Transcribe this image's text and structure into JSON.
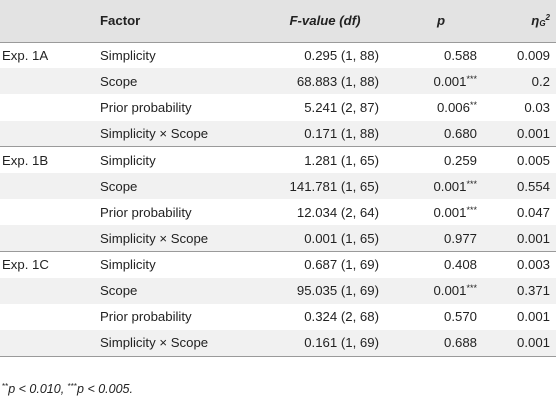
{
  "table": {
    "headers": {
      "experiment": "",
      "factor": "Factor",
      "f_value": "F-value (df)",
      "p": "p",
      "eta_main": "η",
      "eta_sub": "G",
      "eta_sup": "2"
    },
    "rows": [
      {
        "exp": "Exp. 1A",
        "factor": "Simplicity",
        "f": "0.295 (1, 88)",
        "p": "0.588",
        "stars": "",
        "eta": "0.009"
      },
      {
        "exp": "",
        "factor": "Scope",
        "f": "68.883 (1, 88)",
        "p": "0.001",
        "stars": "***",
        "eta": "0.2"
      },
      {
        "exp": "",
        "factor": "Prior probability",
        "f": "5.241 (2, 87)",
        "p": "0.006",
        "stars": "**",
        "eta": "0.03"
      },
      {
        "exp": "",
        "factor": "Simplicity × Scope",
        "f": "0.171 (1, 88)",
        "p": "0.680",
        "stars": "",
        "eta": "0.001"
      },
      {
        "exp": "Exp. 1B",
        "factor": "Simplicity",
        "f": "1.281 (1, 65)",
        "p": "0.259",
        "stars": "",
        "eta": "0.005"
      },
      {
        "exp": "",
        "factor": "Scope",
        "f": "141.781 (1, 65)",
        "p": "0.001",
        "stars": "***",
        "eta": "0.554"
      },
      {
        "exp": "",
        "factor": "Prior probability",
        "f": "12.034 (2, 64)",
        "p": "0.001",
        "stars": "***",
        "eta": "0.047"
      },
      {
        "exp": "",
        "factor": "Simplicity × Scope",
        "f": "0.001 (1, 65)",
        "p": "0.977",
        "stars": "",
        "eta": "0.001"
      },
      {
        "exp": "Exp. 1C",
        "factor": "Simplicity",
        "f": "0.687 (1, 69)",
        "p": "0.408",
        "stars": "",
        "eta": "0.003"
      },
      {
        "exp": "",
        "factor": "Scope",
        "f": "95.035 (1, 69)",
        "p": "0.001",
        "stars": "***",
        "eta": "0.371"
      },
      {
        "exp": "",
        "factor": "Prior probability",
        "f": "0.324 (2, 68)",
        "p": "0.570",
        "stars": "",
        "eta": "0.001"
      },
      {
        "exp": "",
        "factor": "Simplicity × Scope",
        "f": "0.161 (1, 69)",
        "p": "0.688",
        "stars": "",
        "eta": "0.001"
      }
    ]
  },
  "footnote": {
    "s1": "**",
    "t1": "p < 0.010, ",
    "s2": "***",
    "t2": "p < 0.005."
  }
}
